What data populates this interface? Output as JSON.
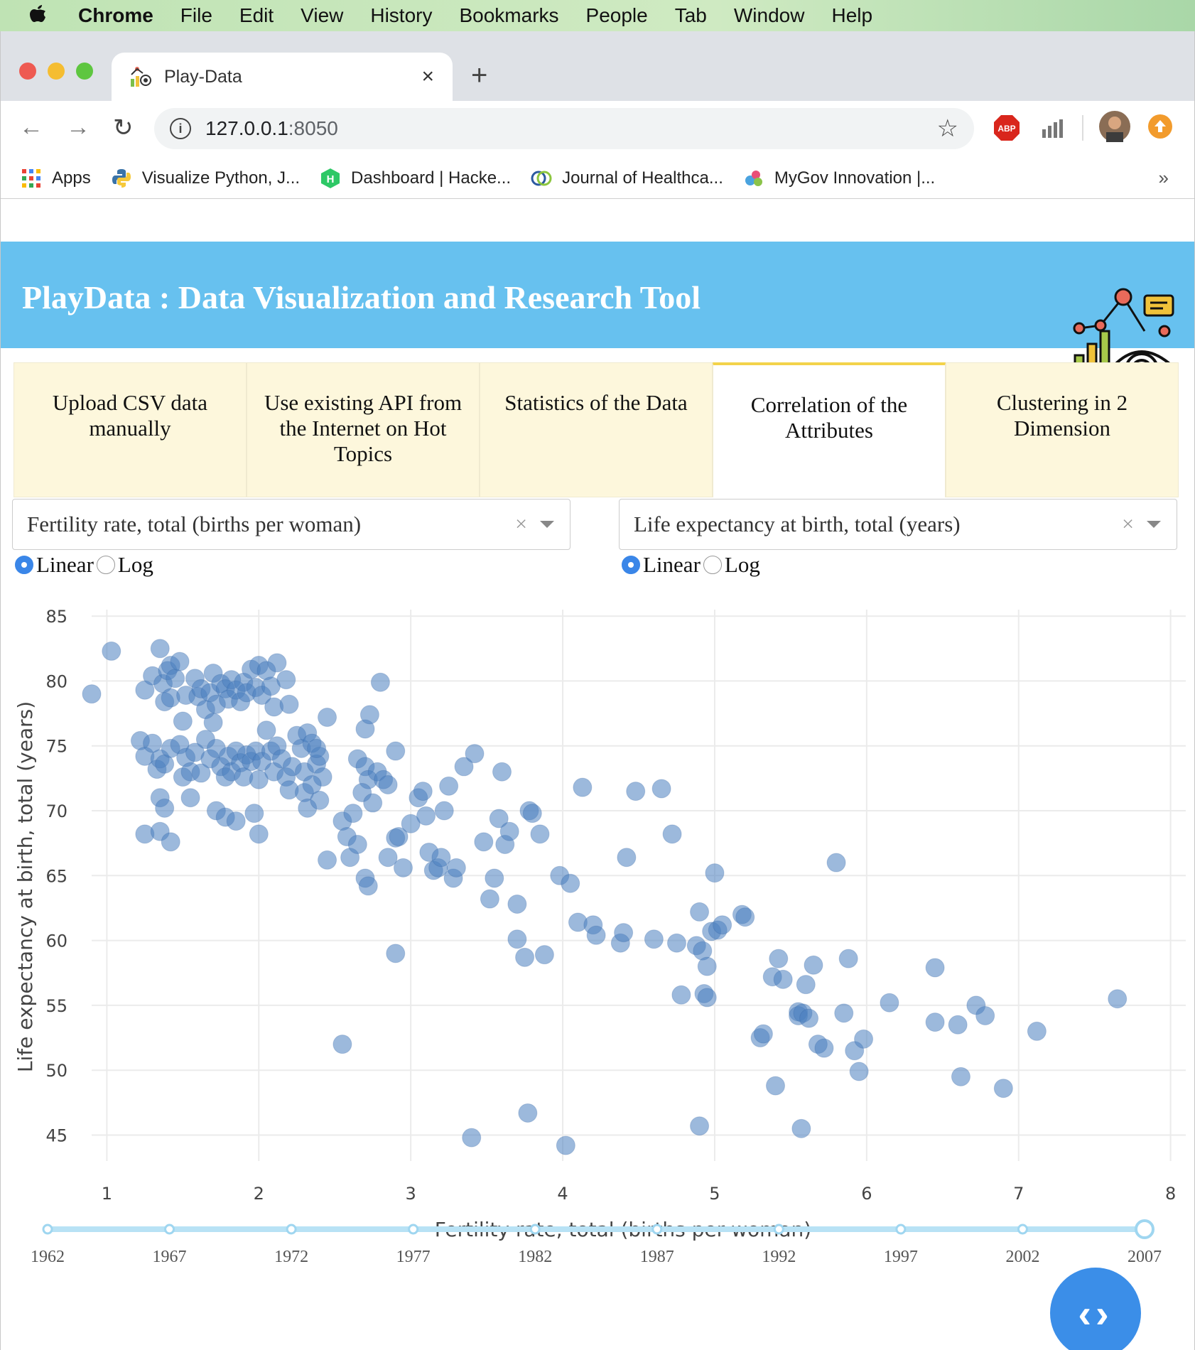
{
  "menubar": {
    "app": "Chrome",
    "items": [
      "File",
      "Edit",
      "View",
      "History",
      "Bookmarks",
      "People",
      "Tab",
      "Window",
      "Help"
    ]
  },
  "browser": {
    "tab_title": "Play-Data",
    "tab_close": "×",
    "new_tab": "+",
    "url_host": "127.0.0.1",
    "url_port": ":8050",
    "back": "←",
    "forward": "→",
    "reload": "↻",
    "star": "☆",
    "ext_abp": "ABP",
    "bookmarks": [
      {
        "label": "Apps",
        "icon": "apps-grid-icon"
      },
      {
        "label": "Visualize Python, J...",
        "icon": "python-icon"
      },
      {
        "label": "Dashboard | Hacke...",
        "icon": "hackerrank-icon"
      },
      {
        "label": "Journal of Healthca...",
        "icon": "journal-icon"
      },
      {
        "label": "MyGov Innovation |...",
        "icon": "mygov-icon"
      }
    ],
    "bookmarks_more": "»"
  },
  "banner": {
    "title": "PlayData : Data Visualization and Research Tool",
    "color": "#67c1ef"
  },
  "tabs": [
    {
      "label": "Upload CSV data manually",
      "active": false
    },
    {
      "label": "Use existing API from the Internet on Hot Topics",
      "active": false
    },
    {
      "label": "Statistics of the Data",
      "active": false
    },
    {
      "label": "Correlation of the Attributes",
      "active": true
    },
    {
      "label": "Clustering in 2 Dimension",
      "active": false
    }
  ],
  "controls": {
    "x_dropdown": {
      "value": "Fertility rate, total (births per woman)",
      "clear": "×"
    },
    "y_dropdown": {
      "value": "Life expectancy at birth, total (years)",
      "clear": "×"
    },
    "x_scale": {
      "options": [
        "Linear",
        "Log"
      ],
      "selected": "Linear"
    },
    "y_scale": {
      "options": [
        "Linear",
        "Log"
      ],
      "selected": "Linear"
    }
  },
  "slider": {
    "marks": [
      "1962",
      "1967",
      "1972",
      "1977",
      "1982",
      "1987",
      "1992",
      "1997",
      "2002",
      "2007"
    ],
    "selected": "2007"
  },
  "fab": {
    "label": "‹›"
  },
  "chart_data": {
    "type": "scatter",
    "xlabel": "Fertility rate, total (births per woman)",
    "ylabel": "Life expectancy at birth, total (years)",
    "xlim": [
      0.9,
      8.1
    ],
    "ylim": [
      43,
      85.5
    ],
    "xticks": [
      1,
      2,
      3,
      4,
      5,
      6,
      7,
      8
    ],
    "yticks": [
      45,
      50,
      55,
      60,
      65,
      70,
      75,
      80,
      85
    ],
    "grid": true,
    "marker_color": "#4a7fbf",
    "points": [
      [
        0.9,
        79
      ],
      [
        1.03,
        82.3
      ],
      [
        1.25,
        79.3
      ],
      [
        1.3,
        80.4
      ],
      [
        1.35,
        82.5
      ],
      [
        1.37,
        79.8
      ],
      [
        1.4,
        80.8
      ],
      [
        1.42,
        81.2
      ],
      [
        1.45,
        80.2
      ],
      [
        1.48,
        81.5
      ],
      [
        1.38,
        78.4
      ],
      [
        1.42,
        78.7
      ],
      [
        1.5,
        76.9
      ],
      [
        1.52,
        78.9
      ],
      [
        1.58,
        80.2
      ],
      [
        1.6,
        78.8
      ],
      [
        1.62,
        79.4
      ],
      [
        1.65,
        77.8
      ],
      [
        1.68,
        79.1
      ],
      [
        1.7,
        80.6
      ],
      [
        1.72,
        78.2
      ],
      [
        1.75,
        79.8
      ],
      [
        1.78,
        79.4
      ],
      [
        1.8,
        78.6
      ],
      [
        1.82,
        80.1
      ],
      [
        1.85,
        79.3
      ],
      [
        1.88,
        78.4
      ],
      [
        1.9,
        79.9
      ],
      [
        1.92,
        79.1
      ],
      [
        1.95,
        80.9
      ],
      [
        1.98,
        79.5
      ],
      [
        2.0,
        81.2
      ],
      [
        2.02,
        78.9
      ],
      [
        2.05,
        80.8
      ],
      [
        2.08,
        79.6
      ],
      [
        2.1,
        78.0
      ],
      [
        2.12,
        81.4
      ],
      [
        2.18,
        80.1
      ],
      [
        2.2,
        78.2
      ],
      [
        1.22,
        75.4
      ],
      [
        1.25,
        74.2
      ],
      [
        1.3,
        75.2
      ],
      [
        1.33,
        73.2
      ],
      [
        1.35,
        74.0
      ],
      [
        1.38,
        73.6
      ],
      [
        1.42,
        74.8
      ],
      [
        1.48,
        75.1
      ],
      [
        1.5,
        72.6
      ],
      [
        1.52,
        74.1
      ],
      [
        1.55,
        73.0
      ],
      [
        1.58,
        74.5
      ],
      [
        1.62,
        72.9
      ],
      [
        1.65,
        75.5
      ],
      [
        1.68,
        74.0
      ],
      [
        1.7,
        76.8
      ],
      [
        1.72,
        74.8
      ],
      [
        1.75,
        73.4
      ],
      [
        1.78,
        72.6
      ],
      [
        1.8,
        74.2
      ],
      [
        1.82,
        73.0
      ],
      [
        1.85,
        74.6
      ],
      [
        1.88,
        73.7
      ],
      [
        1.9,
        72.6
      ],
      [
        1.92,
        74.3
      ],
      [
        1.95,
        73.8
      ],
      [
        1.98,
        74.6
      ],
      [
        2.0,
        72.4
      ],
      [
        2.02,
        73.8
      ],
      [
        2.05,
        76.2
      ],
      [
        2.08,
        74.6
      ],
      [
        2.1,
        73.0
      ],
      [
        2.12,
        75.0
      ],
      [
        2.15,
        74.0
      ],
      [
        2.18,
        72.6
      ],
      [
        2.2,
        71.6
      ],
      [
        2.22,
        73.4
      ],
      [
        2.25,
        75.8
      ],
      [
        2.28,
        74.8
      ],
      [
        2.3,
        73.0
      ],
      [
        2.32,
        76.0
      ],
      [
        2.35,
        75.2
      ],
      [
        2.38,
        73.6
      ],
      [
        2.4,
        74.2
      ],
      [
        2.42,
        72.6
      ],
      [
        2.45,
        77.2
      ],
      [
        2.3,
        71.4
      ],
      [
        2.32,
        70.2
      ],
      [
        2.35,
        72.0
      ],
      [
        2.38,
        74.8
      ],
      [
        2.4,
        70.8
      ],
      [
        1.35,
        71.0
      ],
      [
        1.38,
        70.2
      ],
      [
        1.55,
        71.0
      ],
      [
        1.72,
        70.0
      ],
      [
        1.78,
        69.5
      ],
      [
        1.85,
        69.2
      ],
      [
        1.97,
        69.8
      ],
      [
        2.0,
        68.2
      ],
      [
        1.25,
        68.2
      ],
      [
        1.35,
        68.4
      ],
      [
        1.42,
        67.6
      ],
      [
        2.45,
        66.2
      ],
      [
        2.55,
        69.2
      ],
      [
        2.58,
        68.0
      ],
      [
        2.6,
        66.4
      ],
      [
        2.62,
        69.8
      ],
      [
        2.65,
        67.4
      ],
      [
        2.7,
        64.8
      ],
      [
        2.72,
        64.2
      ],
      [
        2.7,
        76.3
      ],
      [
        2.73,
        77.4
      ],
      [
        2.8,
        79.9
      ],
      [
        2.65,
        74.0
      ],
      [
        2.7,
        73.4
      ],
      [
        2.72,
        72.4
      ],
      [
        2.78,
        73.0
      ],
      [
        2.82,
        72.4
      ],
      [
        2.85,
        72.0
      ],
      [
        2.9,
        74.6
      ],
      [
        2.68,
        71.4
      ],
      [
        2.75,
        70.6
      ],
      [
        2.85,
        66.4
      ],
      [
        2.9,
        67.9
      ],
      [
        2.92,
        68.0
      ],
      [
        2.95,
        65.6
      ],
      [
        3.0,
        69.0
      ],
      [
        3.05,
        71.0
      ],
      [
        3.08,
        71.5
      ],
      [
        3.1,
        69.6
      ],
      [
        3.12,
        66.8
      ],
      [
        3.15,
        65.4
      ],
      [
        3.18,
        65.6
      ],
      [
        3.2,
        66.4
      ],
      [
        3.22,
        70.0
      ],
      [
        3.25,
        71.9
      ],
      [
        3.28,
        64.8
      ],
      [
        3.3,
        65.6
      ],
      [
        3.35,
        73.4
      ],
      [
        3.42,
        74.4
      ],
      [
        3.48,
        67.6
      ],
      [
        3.52,
        63.2
      ],
      [
        3.55,
        64.8
      ],
      [
        3.58,
        69.4
      ],
      [
        3.6,
        73.0
      ],
      [
        3.62,
        67.4
      ],
      [
        3.65,
        68.4
      ],
      [
        3.7,
        62.8
      ],
      [
        3.78,
        70.0
      ],
      [
        3.8,
        69.8
      ],
      [
        3.85,
        68.2
      ],
      [
        3.88,
        58.9
      ],
      [
        3.7,
        60.1
      ],
      [
        3.75,
        58.7
      ],
      [
        3.98,
        65.0
      ],
      [
        4.05,
        64.4
      ],
      [
        4.1,
        61.4
      ],
      [
        4.13,
        71.8
      ],
      [
        4.2,
        61.2
      ],
      [
        4.22,
        60.4
      ],
      [
        4.38,
        59.8
      ],
      [
        4.4,
        60.6
      ],
      [
        4.42,
        66.4
      ],
      [
        4.48,
        71.5
      ],
      [
        4.6,
        60.1
      ],
      [
        4.65,
        71.7
      ],
      [
        4.72,
        68.2
      ],
      [
        4.75,
        59.8
      ],
      [
        4.88,
        59.6
      ],
      [
        4.9,
        62.2
      ],
      [
        4.92,
        59.2
      ],
      [
        4.95,
        58.0
      ],
      [
        4.98,
        60.7
      ],
      [
        5.0,
        65.2
      ],
      [
        5.02,
        60.8
      ],
      [
        5.05,
        61.2
      ],
      [
        5.18,
        62.0
      ],
      [
        5.2,
        61.8
      ],
      [
        4.78,
        55.8
      ],
      [
        4.93,
        55.9
      ],
      [
        4.95,
        55.6
      ],
      [
        5.3,
        52.5
      ],
      [
        5.32,
        52.8
      ],
      [
        5.38,
        57.2
      ],
      [
        5.42,
        58.6
      ],
      [
        5.45,
        57.0
      ],
      [
        5.55,
        54.5
      ],
      [
        5.55,
        54.2
      ],
      [
        5.58,
        54.4
      ],
      [
        5.6,
        56.6
      ],
      [
        5.62,
        54.0
      ],
      [
        5.65,
        58.1
      ],
      [
        5.68,
        52.0
      ],
      [
        5.72,
        51.7
      ],
      [
        5.8,
        66.0
      ],
      [
        5.85,
        54.4
      ],
      [
        5.88,
        58.6
      ],
      [
        5.92,
        51.5
      ],
      [
        5.98,
        52.4
      ],
      [
        5.95,
        49.9
      ],
      [
        6.15,
        55.2
      ],
      [
        6.45,
        57.9
      ],
      [
        6.45,
        53.7
      ],
      [
        6.6,
        53.5
      ],
      [
        6.72,
        55.0
      ],
      [
        6.78,
        54.2
      ],
      [
        6.62,
        49.5
      ],
      [
        7.12,
        53.0
      ],
      [
        6.9,
        48.6
      ],
      [
        7.65,
        55.5
      ],
      [
        2.55,
        52.0
      ],
      [
        2.9,
        59.0
      ],
      [
        3.4,
        44.8
      ],
      [
        3.77,
        46.7
      ],
      [
        4.02,
        44.2
      ],
      [
        4.9,
        45.7
      ],
      [
        5.4,
        48.8
      ],
      [
        5.57,
        45.5
      ]
    ]
  }
}
